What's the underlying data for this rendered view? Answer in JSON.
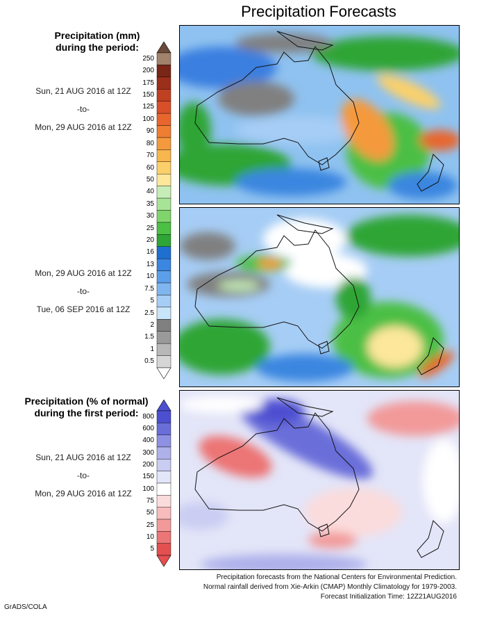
{
  "title": "Precipitation Forecasts",
  "legend_mm": {
    "heading_line1": "Precipitation (mm)",
    "heading_line2": "during the period:",
    "levels": [
      "250",
      "200",
      "175",
      "150",
      "125",
      "100",
      "90",
      "80",
      "70",
      "60",
      "50",
      "40",
      "35",
      "30",
      "25",
      "20",
      "16",
      "13",
      "10",
      "7.5",
      "5",
      "2.5",
      "2",
      "1.5",
      "1",
      "0.5"
    ],
    "colors": [
      "#a0826d",
      "#7a2616",
      "#9b2f1a",
      "#c04022",
      "#d94f2a",
      "#e8662e",
      "#ef7e33",
      "#f49a3d",
      "#f8b64e",
      "#fbd06a",
      "#fce79a",
      "#c6edb8",
      "#a8e496",
      "#7fd56c",
      "#4cbf45",
      "#2ea536",
      "#1f6fd1",
      "#3b86e0",
      "#5c9ee9",
      "#80b6ef",
      "#a6cdf5",
      "#c9e5f9",
      "#808080",
      "#9a9a9a",
      "#b8b8b8",
      "#d6d6d6"
    ]
  },
  "period1": {
    "from": "Sun, 21 AUG 2016 at 12Z",
    "sep": "-to-",
    "to": "Mon, 29 AUG 2016 at 12Z"
  },
  "period2": {
    "from": "Mon, 29 AUG 2016 at 12Z",
    "sep": "-to-",
    "to": "Tue, 06 SEP 2016 at 12Z"
  },
  "legend_pct": {
    "heading_line1": "Precipitation (% of normal)",
    "heading_line2": "during the first period:",
    "levels": [
      "800",
      "600",
      "400",
      "300",
      "200",
      "150",
      "100",
      "75",
      "50",
      "25",
      "10",
      "5"
    ],
    "colors": [
      "#4d4fd1",
      "#6a6ed9",
      "#8e91e2",
      "#aeb1ea",
      "#cacdf2",
      "#e3e5f8",
      "#ffffff",
      "#fbdcdc",
      "#f8bcbc",
      "#f29a9a",
      "#ec7575",
      "#e44f4f"
    ]
  },
  "period3": {
    "from": "Sun, 21 AUG 2016 at 12Z",
    "sep": "-to-",
    "to": "Mon, 29 AUG 2016 at 12Z"
  },
  "footer": {
    "line1": "Precipitation forecasts from the National Centers for Environmental Prediction.",
    "line2": "Normal rainfall derived from Xie-Arkin (CMAP) Monthly Climatology for 1979-2003.",
    "line3": "Forecast Initialization Time: 12Z21AUG2016"
  },
  "credit": "GrADS/COLA"
}
